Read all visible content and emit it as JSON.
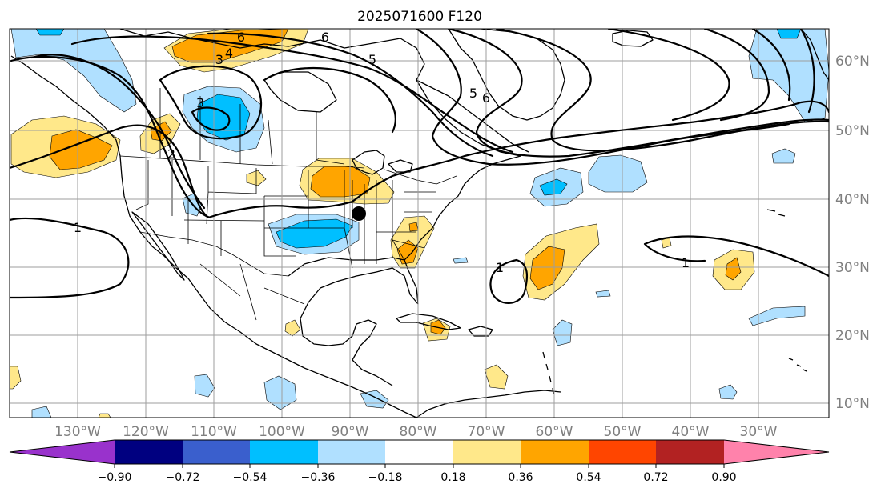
{
  "map": {
    "title": "2025071600 F120",
    "lon_labels": [
      "130°W",
      "120°W",
      "110°W",
      "100°W",
      "90°W",
      "80°W",
      "70°W",
      "60°W",
      "50°W",
      "40°W",
      "30°W"
    ],
    "lat_labels": [
      "60°N",
      "50°N",
      "40°N",
      "30°N",
      "20°N",
      "10°N"
    ],
    "contour_labels": [
      "6",
      "6",
      "5",
      "5",
      "6",
      "3",
      "4",
      "3",
      "2",
      "1",
      "1",
      "1"
    ],
    "marker": "black-dot"
  },
  "colorbar": {
    "ticks": [
      "−0.90",
      "−0.72",
      "−0.54",
      "−0.36",
      "−0.18",
      "0.18",
      "0.36",
      "0.54",
      "0.72",
      "0.90"
    ],
    "colors": [
      "#9932CC",
      "#000080",
      "#3A5FCD",
      "#00BFFF",
      "#B0E0FF",
      "#FFFFFF",
      "#FFE88A",
      "#FFA500",
      "#FF4500",
      "#B22222",
      "#FF82AB"
    ]
  },
  "colors": {
    "light_blue": "#B0E0FF",
    "deep_sky_blue": "#00BFFF",
    "light_yellow": "#FFE88A",
    "orange": "#FFA500"
  }
}
